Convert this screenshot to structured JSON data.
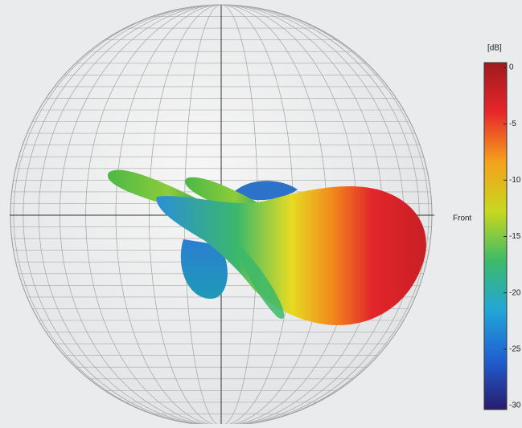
{
  "chart_data": {
    "type": "radiation-pattern",
    "direction_label": "Front",
    "colorbar": {
      "label": "[dB]",
      "ylim": [
        -30,
        0
      ],
      "yticks": [
        0,
        -5,
        -10,
        -15,
        -20,
        -25,
        -30
      ],
      "colors": [
        "#2a1a6e",
        "#1f5fd0",
        "#22a6d8",
        "#3cba6a",
        "#c8d81e",
        "#f4a11c",
        "#e8262a",
        "#9e1a1e"
      ]
    }
  }
}
